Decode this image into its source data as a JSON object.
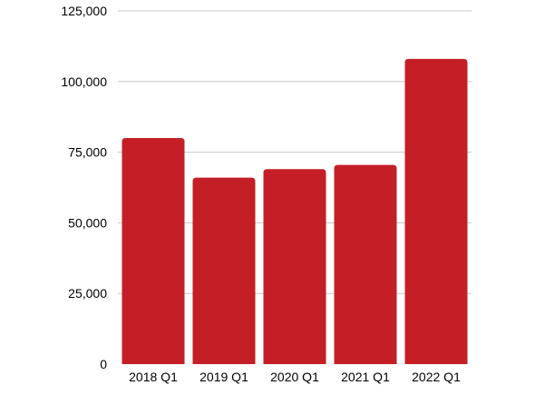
{
  "chart_data": {
    "type": "bar",
    "title": "",
    "xlabel": "",
    "ylabel": "",
    "categories": [
      "2018 Q1",
      "2019 Q1",
      "2020 Q1",
      "2021 Q1",
      "2022 Q1"
    ],
    "values": [
      80000,
      66000,
      69000,
      70500,
      108000
    ],
    "ylim": [
      0,
      125000
    ],
    "yticks": [
      0,
      25000,
      50000,
      75000,
      100000,
      125000
    ],
    "ytick_labels": [
      "0",
      "25,000",
      "50,000",
      "75,000",
      "100,000",
      "125,000"
    ],
    "bar_color": "#c41f26",
    "grid": true,
    "grid_color": "#c8c8c8",
    "legend": "none"
  }
}
